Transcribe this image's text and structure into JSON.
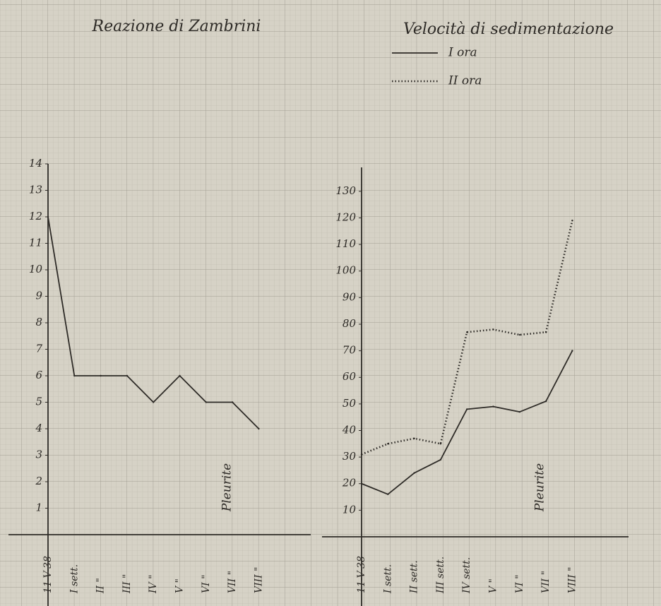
{
  "chart_data": [
    {
      "type": "line",
      "title": "Reazione di Zambrini",
      "categories": [
        "11-V-38",
        "I sett.",
        "II \"",
        "III \"",
        "IV \"",
        "V \"",
        "VI \"",
        "VII \"",
        "VIII \""
      ],
      "series": [
        {
          "color": "#2e2b27",
          "dash": "solid",
          "values": [
            12,
            6,
            6,
            6,
            5,
            6,
            5,
            5,
            4
          ]
        }
      ],
      "ylim": [
        0,
        14
      ],
      "yticks": [
        1,
        2,
        3,
        4,
        5,
        6,
        7,
        8,
        9,
        10,
        11,
        12,
        13,
        14
      ],
      "annotation": "Pleurite"
    },
    {
      "type": "line",
      "title": "Velocità di sedimentazione",
      "categories": [
        "11-V-38",
        "I sett.",
        "II sett.",
        "III sett.",
        "IV sett.",
        "V \"",
        "VI \"",
        "VII \"",
        "VIII \""
      ],
      "series": [
        {
          "name": "I ora",
          "color": "#2e2b27",
          "dash": "solid",
          "values": [
            20,
            16,
            24,
            29,
            48,
            49,
            47,
            51,
            70
          ]
        },
        {
          "name": "II ora",
          "color": "#2e2b27",
          "dash": "dotted",
          "values": [
            31,
            35,
            37,
            35,
            77,
            78,
            76,
            77,
            119
          ]
        }
      ],
      "ylim": [
        0,
        139
      ],
      "yticks": [
        10,
        20,
        30,
        40,
        50,
        60,
        70,
        80,
        90,
        100,
        110,
        120,
        130
      ],
      "annotation": "Pleurite"
    }
  ]
}
